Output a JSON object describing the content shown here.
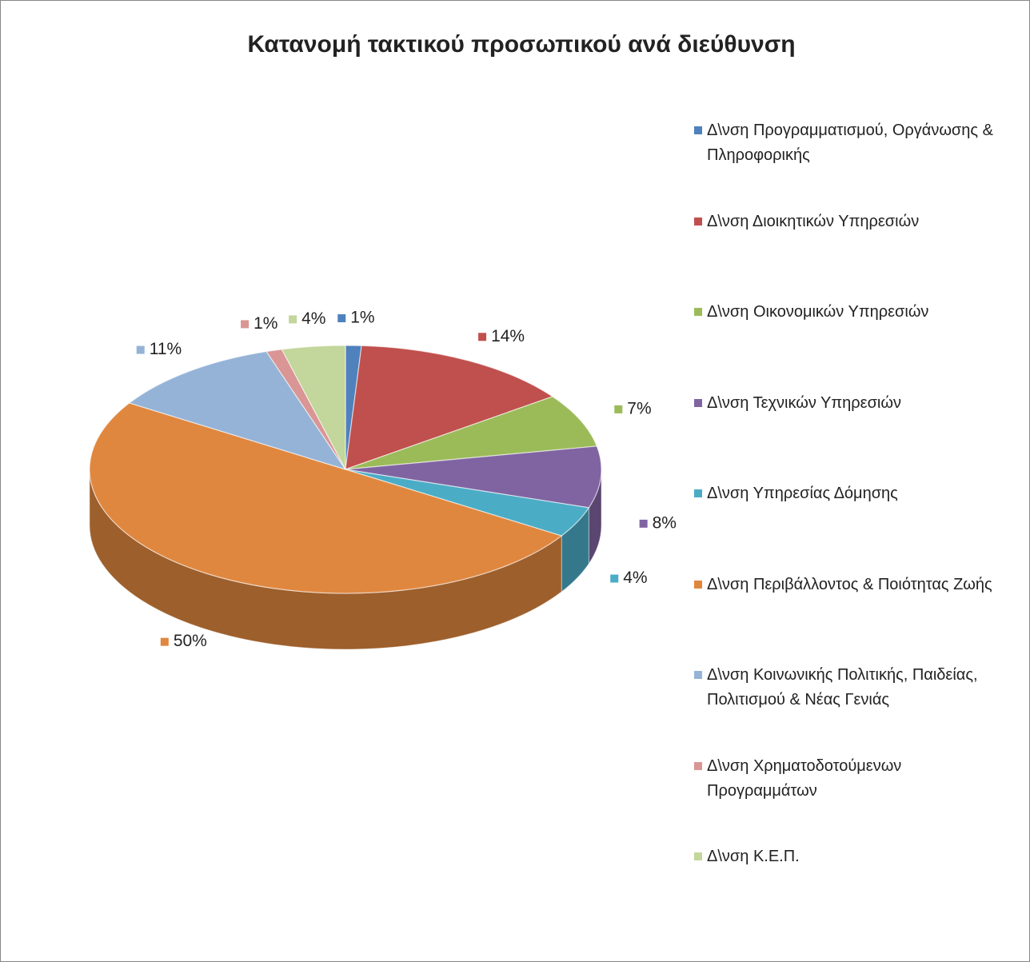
{
  "chart_data": {
    "type": "pie3d",
    "title": "Κατανομή τακτικού προσωπικού ανά διεύθυνση",
    "categories": [
      "Δ\\νση Προγραμματισμού, Οργάνωσης & Πληροφορικής",
      "Δ\\νση Διοικητικών Υπηρεσιών",
      "Δ\\νση Οικονομικών Υπηρεσιών",
      "Δ\\νση Τεχνικών Υπηρεσιών",
      "Δ\\νση Υπηρεσίας Δόμησης",
      "Δ\\νση Περιβάλλοντος & Ποιότητας Ζωής",
      "Δ\\νση Κοινωνικής Πολιτικής, Παιδείας, Πολιτισμού & Νέας Γενιάς",
      "Δ\\νση Χρηματοδοτούμενων Προγραμμάτων",
      "Δ\\νση Κ.Ε.Π."
    ],
    "values": [
      1,
      14,
      7,
      8,
      4,
      50,
      11,
      1,
      4
    ],
    "value_labels": [
      "1%",
      "14%",
      "7%",
      "8%",
      "4%",
      "50%",
      "11%",
      "1%",
      "4%"
    ],
    "colors": [
      "#4f81bd",
      "#c0504d",
      "#9bbb59",
      "#8064a2",
      "#4bacc6",
      "#e0873f",
      "#95b3d7",
      "#d99694",
      "#c3d69b"
    ],
    "legend": "right"
  }
}
